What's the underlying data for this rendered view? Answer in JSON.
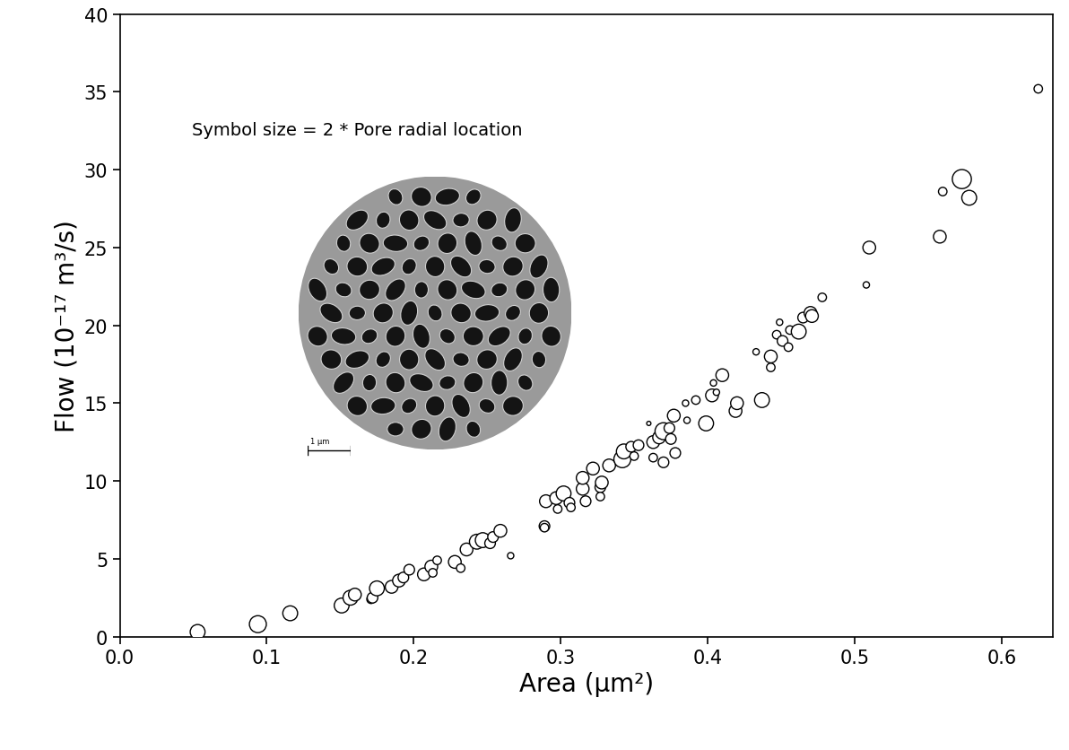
{
  "chart_data": {
    "type": "scatter",
    "xlabel": "Area (μm²)",
    "ylabel": "Flow (10⁻¹⁷ m³/s)",
    "annotations": [
      "Symbol size = 2 * Pore radial location",
      "1 μm"
    ],
    "color": "#000000",
    "marker": "circle",
    "xlim": [
      0.0,
      0.635
    ],
    "ylim": [
      0,
      40
    ],
    "xticks": [
      0.0,
      0.1,
      0.2,
      0.3,
      0.4,
      0.5,
      0.6
    ],
    "yticks": [
      0,
      5,
      10,
      15,
      20,
      25,
      30,
      35,
      40
    ],
    "x": [
      0.053,
      0.094,
      0.116,
      0.151,
      0.157,
      0.16,
      0.171,
      0.172,
      0.175,
      0.185,
      0.19,
      0.193,
      0.197,
      0.207,
      0.212,
      0.216,
      0.213,
      0.228,
      0.232,
      0.236,
      0.243,
      0.247,
      0.252,
      0.254,
      0.259,
      0.266,
      0.289,
      0.29,
      0.289,
      0.297,
      0.298,
      0.302,
      0.306,
      0.307,
      0.315,
      0.315,
      0.317,
      0.322,
      0.327,
      0.328,
      0.327,
      0.333,
      0.342,
      0.343,
      0.348,
      0.35,
      0.353,
      0.36,
      0.363,
      0.363,
      0.367,
      0.37,
      0.37,
      0.374,
      0.375,
      0.377,
      0.378,
      0.385,
      0.386,
      0.392,
      0.399,
      0.403,
      0.404,
      0.406,
      0.41,
      0.419,
      0.42,
      0.433,
      0.437,
      0.443,
      0.443,
      0.447,
      0.449,
      0.451,
      0.455,
      0.456,
      0.462,
      0.465,
      0.47,
      0.471,
      0.478,
      0.508,
      0.51,
      0.558,
      0.56,
      0.573,
      0.578,
      0.625
    ],
    "values": [
      0.3,
      0.8,
      1.5,
      2.0,
      2.5,
      2.7,
      2.4,
      2.5,
      3.1,
      3.2,
      3.6,
      3.8,
      4.3,
      4.0,
      4.5,
      4.9,
      4.1,
      4.8,
      4.4,
      5.6,
      6.1,
      6.2,
      6.0,
      6.4,
      6.8,
      5.2,
      7.1,
      8.7,
      7.0,
      8.9,
      8.2,
      9.2,
      8.6,
      8.3,
      9.5,
      10.2,
      8.7,
      10.8,
      9.6,
      9.9,
      9.0,
      11.0,
      11.4,
      11.9,
      12.2,
      11.6,
      12.3,
      13.7,
      12.5,
      11.5,
      12.8,
      13.2,
      11.2,
      13.4,
      12.7,
      14.2,
      11.8,
      15.0,
      13.9,
      15.2,
      13.7,
      15.5,
      16.3,
      15.7,
      16.8,
      14.5,
      15.0,
      18.3,
      15.2,
      17.3,
      18.0,
      19.4,
      20.2,
      19.0,
      18.6,
      19.7,
      19.6,
      20.5,
      20.8,
      20.6,
      21.8,
      22.6,
      25.0,
      25.7,
      28.6,
      29.4,
      28.2,
      35.2
    ],
    "radial_location": [
      7,
      8,
      7,
      7,
      7,
      6,
      4,
      5,
      7,
      6,
      6,
      5,
      5,
      6,
      6,
      4,
      4,
      6,
      4,
      6,
      7,
      7,
      5,
      5,
      6,
      3,
      5,
      6,
      4,
      6,
      4,
      7,
      5,
      4,
      6,
      6,
      5,
      6,
      5,
      6,
      4,
      6,
      8,
      7,
      5,
      4,
      5,
      2,
      6,
      4,
      6,
      8,
      5,
      5,
      5,
      6,
      5,
      3,
      3,
      4,
      7,
      6,
      3,
      3,
      6,
      6,
      6,
      3,
      7,
      4,
      6,
      4,
      3,
      5,
      4,
      4,
      7,
      5,
      6,
      6,
      4,
      3,
      6,
      6,
      4,
      9,
      7,
      4
    ]
  }
}
